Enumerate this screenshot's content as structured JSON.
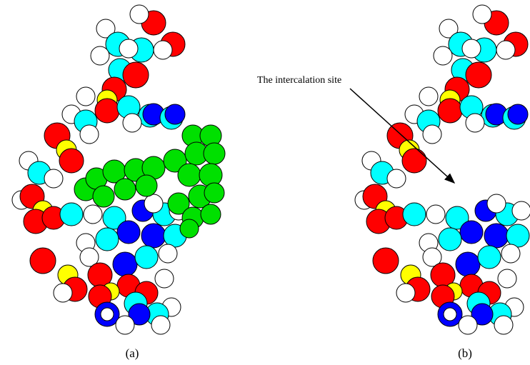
{
  "figure": {
    "annotation": "The intercalation site",
    "panels": [
      {
        "label": "(a)"
      },
      {
        "label": "(b)"
      }
    ]
  }
}
